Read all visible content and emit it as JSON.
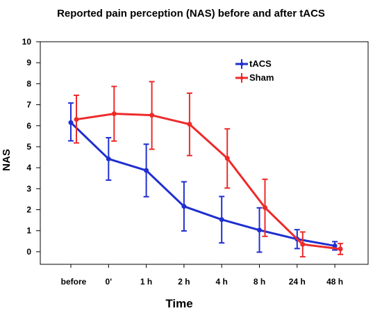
{
  "chart_data": {
    "type": "line",
    "title": "Reported pain perception (NAS) before and after tACS",
    "xlabel": "Time",
    "ylabel": "NAS",
    "categories": [
      "before",
      "0'",
      "1 h",
      "2 h",
      "4 h",
      "8 h",
      "24 h",
      "48 h"
    ],
    "ylim": [
      -0.6,
      10
    ],
    "yticks": [
      0,
      1,
      2,
      3,
      4,
      5,
      6,
      7,
      8,
      9,
      10
    ],
    "grid": false,
    "legend_position": "top-right",
    "series": [
      {
        "name": "tACS",
        "color": "#1f2fd0",
        "values": [
          6.15,
          4.42,
          3.87,
          2.16,
          1.53,
          1.03,
          0.6,
          0.28
        ],
        "error_low": [
          5.28,
          3.41,
          2.62,
          0.99,
          0.42,
          -0.02,
          0.15,
          0.08
        ],
        "error_high": [
          7.08,
          5.43,
          5.12,
          3.33,
          2.63,
          2.09,
          1.05,
          0.48
        ]
      },
      {
        "name": "Sham",
        "color": "#ee2a2a",
        "values": [
          6.3,
          6.57,
          6.5,
          6.07,
          4.45,
          2.1,
          0.35,
          0.13
        ],
        "error_low": [
          5.18,
          5.27,
          4.88,
          4.58,
          3.03,
          0.73,
          -0.24,
          -0.13
        ],
        "error_high": [
          7.45,
          7.87,
          8.1,
          7.55,
          5.85,
          3.45,
          0.94,
          0.39
        ]
      }
    ]
  }
}
